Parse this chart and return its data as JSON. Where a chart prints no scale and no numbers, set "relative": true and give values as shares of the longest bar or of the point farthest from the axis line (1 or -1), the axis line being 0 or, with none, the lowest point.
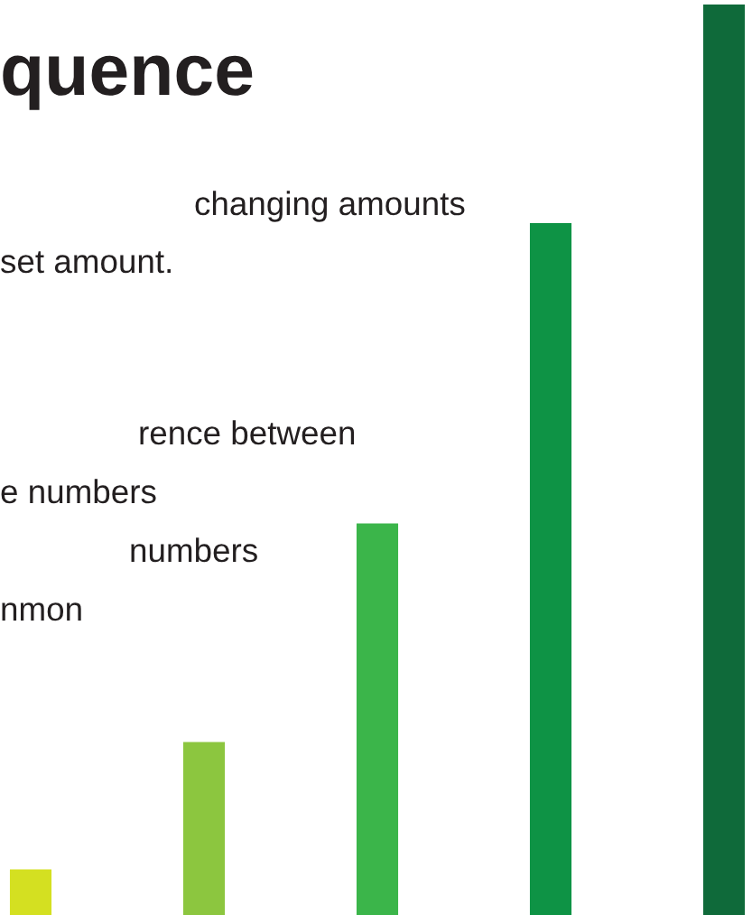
{
  "chart_data": {
    "type": "bar",
    "title": "quence",
    "relative": true,
    "categories": [
      null,
      null,
      null,
      null,
      null
    ],
    "values": [
      0.05,
      0.19,
      0.43,
      0.76,
      1.0
    ],
    "colors": [
      "#d4e021",
      "#8cc63f",
      "#3bb54a",
      "#0e9345",
      "#0f6a3a"
    ],
    "annotations": [
      "changing amounts",
      "set amount.",
      "rence between",
      "e numbers",
      "numbers",
      "nmon"
    ],
    "grid": false,
    "legend": false
  }
}
